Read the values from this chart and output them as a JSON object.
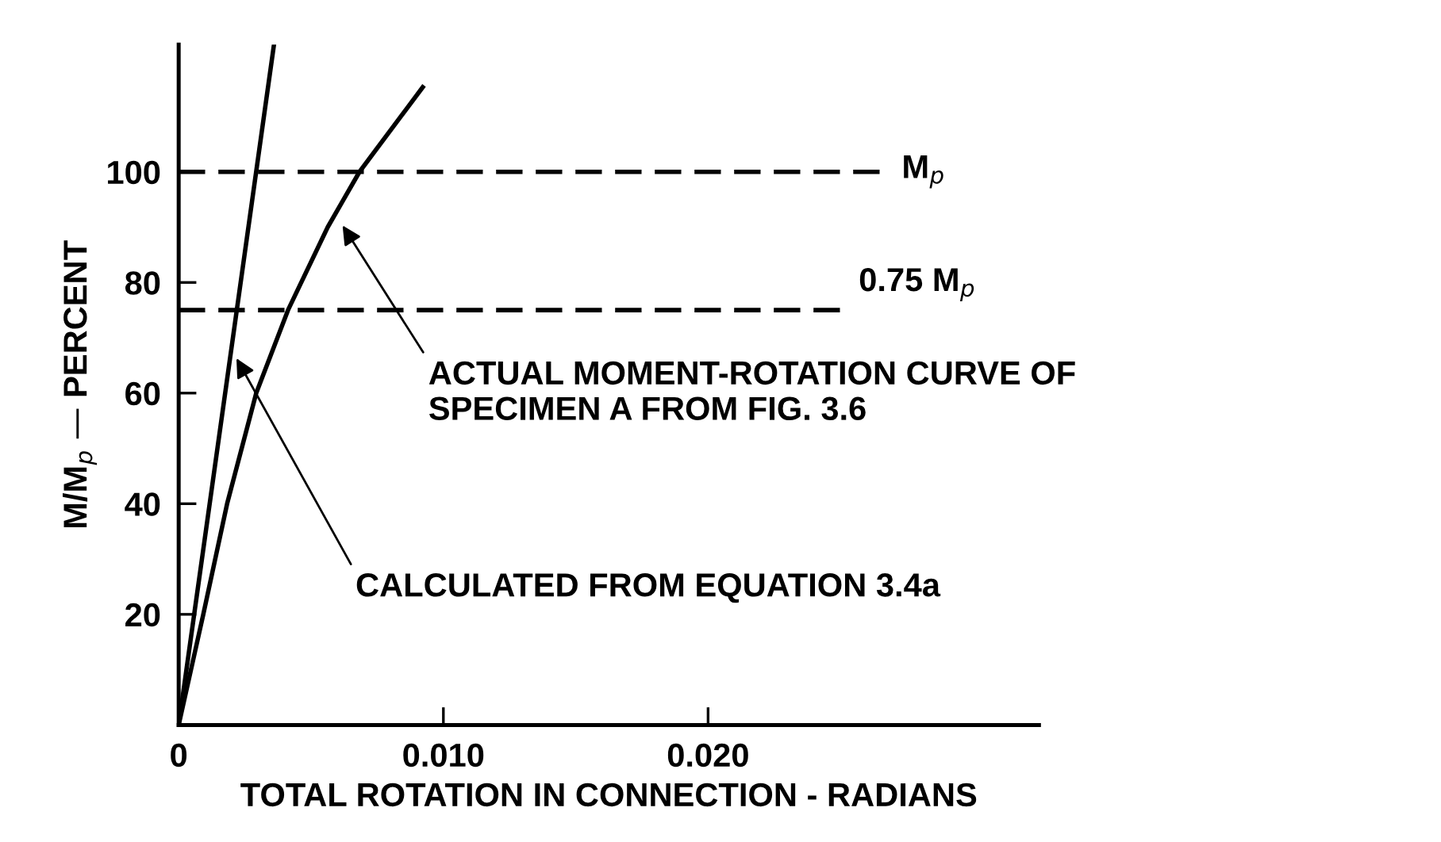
{
  "chart_data": {
    "type": "line",
    "xlabel": "TOTAL ROTATION IN CONNECTION - RADIANS",
    "ylabel": "M/M$_{p}$ — PERCENT",
    "xlim": [
      0,
      0.0325
    ],
    "ylim": [
      0,
      123
    ],
    "xticks": [
      0,
      {
        "value": 0.01,
        "label": "0.010"
      },
      {
        "value": 0.02,
        "label": "0.020"
      }
    ],
    "yticks": [
      20,
      40,
      60,
      80,
      100
    ],
    "grid": false,
    "legend": false,
    "marker": "none",
    "line_style": "solid",
    "series": [
      {
        "color": "#000000",
        "x": [
          0,
          0.0036
        ],
        "values": [
          0,
          123
        ]
      },
      {
        "color": "#000000",
        "x": [
          0,
          0.00093,
          0.00183,
          0.00293,
          0.00413,
          0.00563,
          0.00683,
          0.00922
        ],
        "values": [
          0,
          20,
          40,
          60,
          75,
          90,
          100,
          115.3
        ]
      }
    ],
    "ref_lines": [
      {
        "axis": "y",
        "value": 100,
        "label": "M$_{p}$",
        "color": "#000000",
        "line_style": "dashed"
      },
      {
        "axis": "y",
        "value": 75,
        "label": "0.75 M$_{p}$",
        "color": "#000000",
        "line_style": "dashed"
      }
    ],
    "annotations": [
      {
        "text": "ACTUAL MOMENT-ROTATION CURVE OF\nSPECIMEN A FROM FIG. 3.6",
        "x": 0.0061,
        "y": 91
      },
      {
        "text": "CALCULATED FROM EQUATION 3.4a",
        "x": 0.0021,
        "y": 67
      }
    ]
  }
}
